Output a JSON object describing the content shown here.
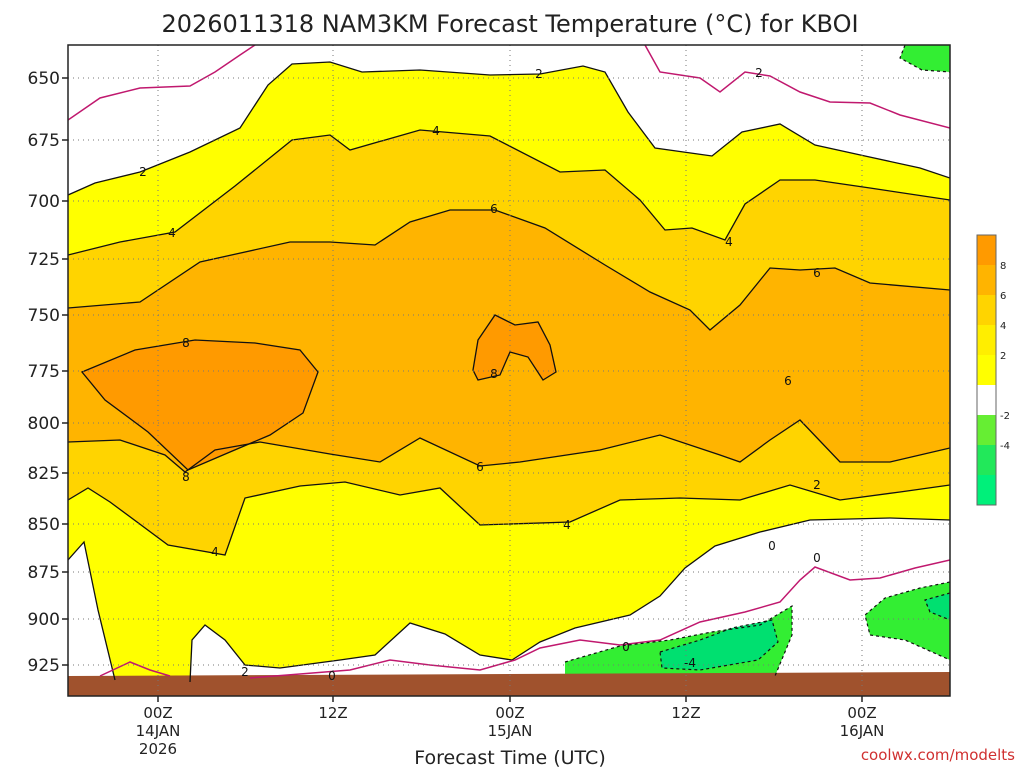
{
  "chart_data": {
    "type": "contour",
    "title": "2026011318 NAM3KM Forecast Temperature (°C) for KBOI",
    "xlabel": "Forecast Time (UTC)",
    "ylabel": "",
    "y_axis": {
      "ticks": [
        650,
        675,
        700,
        725,
        750,
        775,
        800,
        825,
        850,
        875,
        900,
        925
      ]
    },
    "x_axis": {
      "ticks": [
        {
          "label": "00Z",
          "date": "14JAN",
          "year": "2026"
        },
        {
          "label": "12Z",
          "date": "",
          "year": ""
        },
        {
          "label": "00Z",
          "date": "15JAN",
          "year": ""
        },
        {
          "label": "12Z",
          "date": "",
          "year": ""
        },
        {
          "label": "00Z",
          "date": "16JAN",
          "year": ""
        }
      ]
    },
    "contour_labels": [
      "2",
      "4",
      "2",
      "4",
      "6",
      "8",
      "8",
      "8",
      "6",
      "6",
      "6",
      "4",
      "4",
      "4",
      "2",
      "0",
      "2",
      "0",
      "0",
      "0",
      "-4"
    ],
    "legend": {
      "levels": [
        "8",
        "6",
        "4",
        "2",
        "-2",
        "-4"
      ],
      "colors": [
        "#ff9a00",
        "#ffb400",
        "#ffd400",
        "#ffee00",
        "#ffff00",
        "#ffffff",
        "#66ee33",
        "#22e85a",
        "#00f07a"
      ]
    },
    "grid": true
  },
  "credit": "coolwx.com/modelts"
}
